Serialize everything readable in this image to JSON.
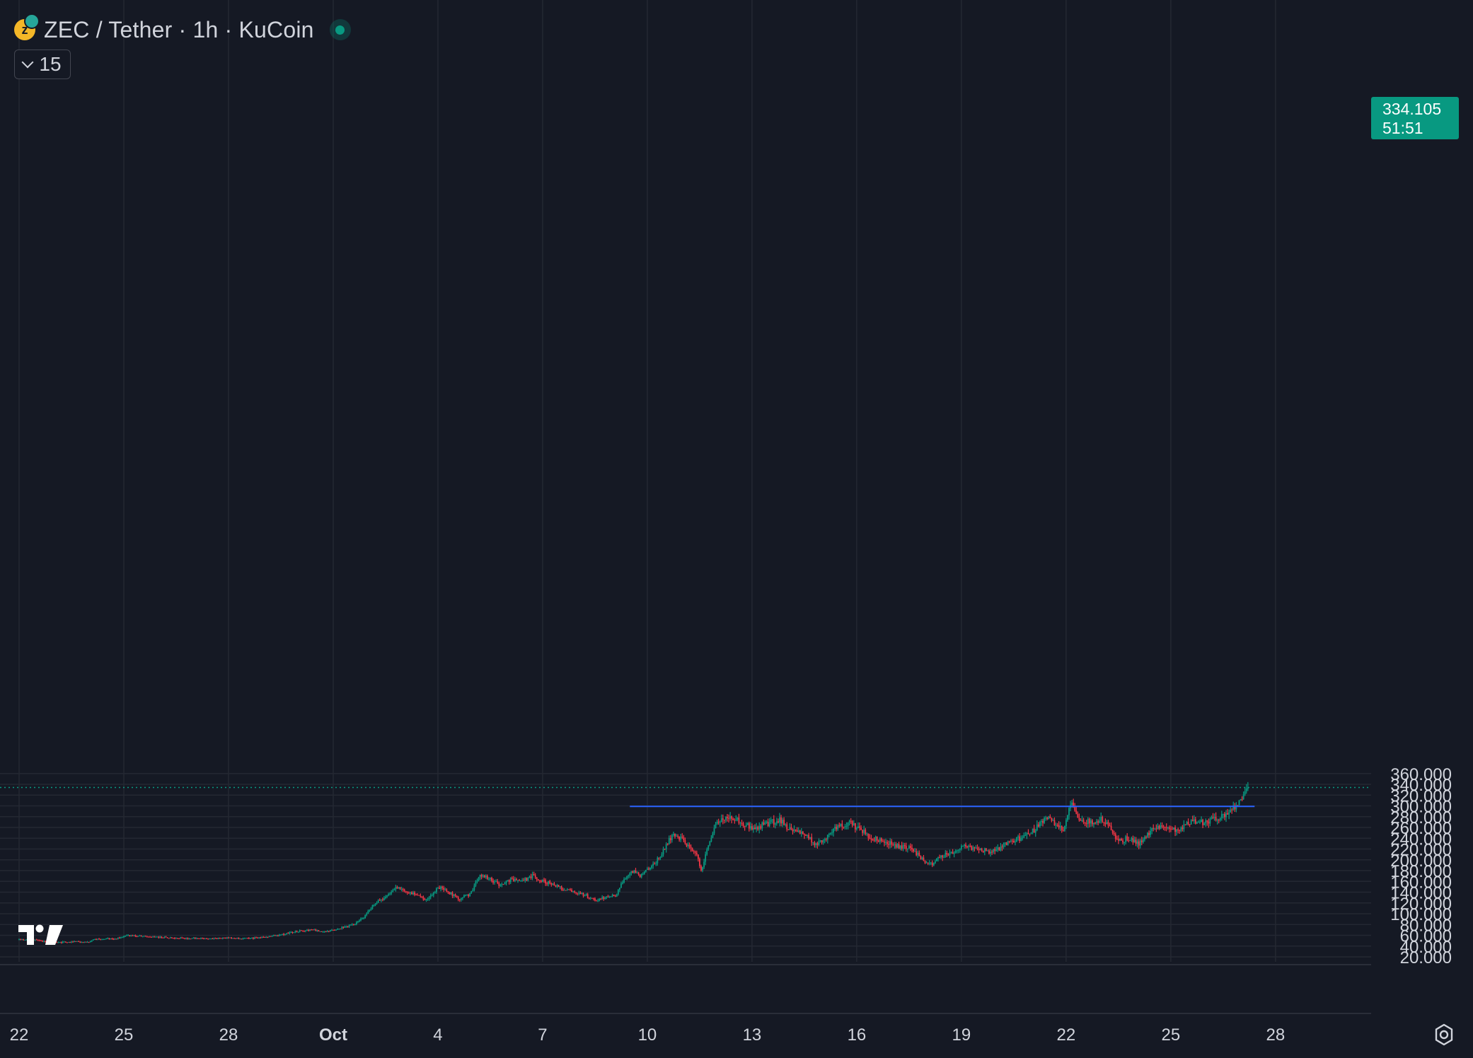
{
  "header": {
    "symbol_title": "ZEC / Tether · 1h · KuCoin",
    "coin_icon": "zcash-coin-icon",
    "status_icon": "market-open-dot-icon",
    "volume_toggle_value": "15"
  },
  "price_label": {
    "price": "334.105",
    "countdown": "51:51"
  },
  "colors": {
    "background": "#151924",
    "grid": "#242832",
    "up": "#089981",
    "down": "#f23645",
    "hline": "#2962ff",
    "text": "#d1d4dc"
  },
  "chart_data": {
    "type": "candlestick",
    "y_ticks": [
      "360.000",
      "340.000",
      "320.000",
      "300.000",
      "280.000",
      "260.000",
      "240.000",
      "220.000",
      "200.000",
      "180.000",
      "160.000",
      "140.000",
      "120.000",
      "100.000",
      "80.000",
      "60.000",
      "40.000",
      "20.000"
    ],
    "ylim": [
      20,
      360
    ],
    "x_ticks": [
      "22",
      "25",
      "28",
      "Oct",
      "4",
      "7",
      "10",
      "13",
      "16",
      "19",
      "22",
      "25",
      "28"
    ],
    "x_tick_days": [
      0,
      3,
      6,
      9,
      12,
      15,
      18,
      21,
      24,
      27,
      30,
      33,
      36
    ],
    "xlim_days": [
      0,
      42.2
    ],
    "last_price": 334.105,
    "horizontal_line": {
      "value": 299,
      "from_day": 17.5,
      "to_day": 35.4
    },
    "path": [
      [
        0,
        52
      ],
      [
        0.5,
        52
      ],
      [
        0.9,
        46
      ],
      [
        1.5,
        48
      ],
      [
        2,
        48
      ],
      [
        2.2,
        53
      ],
      [
        2.8,
        54
      ],
      [
        3.1,
        60
      ],
      [
        3.6,
        58
      ],
      [
        4.2,
        56
      ],
      [
        4.8,
        54
      ],
      [
        5.4,
        54
      ],
      [
        6,
        55
      ],
      [
        6.6,
        54
      ],
      [
        7.2,
        58
      ],
      [
        7.6,
        62
      ],
      [
        8,
        68
      ],
      [
        8.4,
        70
      ],
      [
        8.8,
        66
      ],
      [
        9,
        70
      ],
      [
        9.3,
        75
      ],
      [
        9.6,
        80
      ],
      [
        9.9,
        95
      ],
      [
        10.2,
        120
      ],
      [
        10.5,
        130
      ],
      [
        10.8,
        150
      ],
      [
        11.1,
        140
      ],
      [
        11.4,
        135
      ],
      [
        11.7,
        125
      ],
      [
        12,
        150
      ],
      [
        12.3,
        140
      ],
      [
        12.6,
        128
      ],
      [
        12.9,
        135
      ],
      [
        13.2,
        170
      ],
      [
        13.5,
        165
      ],
      [
        13.8,
        150
      ],
      [
        14.1,
        165
      ],
      [
        14.4,
        160
      ],
      [
        14.7,
        170
      ],
      [
        15,
        160
      ],
      [
        15.3,
        155
      ],
      [
        15.6,
        145
      ],
      [
        15.9,
        140
      ],
      [
        16.2,
        135
      ],
      [
        16.5,
        125
      ],
      [
        16.8,
        130
      ],
      [
        17.1,
        135
      ],
      [
        17.3,
        160
      ],
      [
        17.6,
        180
      ],
      [
        17.8,
        170
      ],
      [
        18.1,
        185
      ],
      [
        18.4,
        210
      ],
      [
        18.7,
        245
      ],
      [
        19,
        240
      ],
      [
        19.2,
        220
      ],
      [
        19.4,
        210
      ],
      [
        19.55,
        180
      ],
      [
        19.7,
        220
      ],
      [
        20,
        270
      ],
      [
        20.4,
        280
      ],
      [
        20.7,
        270
      ],
      [
        21,
        260
      ],
      [
        21.4,
        265
      ],
      [
        21.8,
        275
      ],
      [
        22.1,
        255
      ],
      [
        22.5,
        250
      ],
      [
        22.8,
        230
      ],
      [
        23.1,
        240
      ],
      [
        23.4,
        260
      ],
      [
        23.8,
        270
      ],
      [
        24.1,
        255
      ],
      [
        24.5,
        240
      ],
      [
        24.8,
        235
      ],
      [
        25.2,
        225
      ],
      [
        25.6,
        220
      ],
      [
        25.9,
        200
      ],
      [
        26.1,
        190
      ],
      [
        26.4,
        205
      ],
      [
        26.8,
        215
      ],
      [
        27.1,
        225
      ],
      [
        27.5,
        220
      ],
      [
        27.9,
        215
      ],
      [
        28.3,
        230
      ],
      [
        28.7,
        240
      ],
      [
        29.1,
        255
      ],
      [
        29.4,
        280
      ],
      [
        29.7,
        265
      ],
      [
        29.9,
        255
      ],
      [
        30.15,
        305
      ],
      [
        30.4,
        275
      ],
      [
        30.7,
        270
      ],
      [
        31,
        275
      ],
      [
        31.2,
        265
      ],
      [
        31.5,
        235
      ],
      [
        31.8,
        240
      ],
      [
        32.1,
        230
      ],
      [
        32.5,
        260
      ],
      [
        32.8,
        265
      ],
      [
        33.2,
        255
      ],
      [
        33.5,
        270
      ],
      [
        33.9,
        270
      ],
      [
        34.3,
        275
      ],
      [
        34.6,
        285
      ],
      [
        34.9,
        300
      ],
      [
        35.1,
        318
      ],
      [
        35.2,
        334.1
      ]
    ]
  }
}
